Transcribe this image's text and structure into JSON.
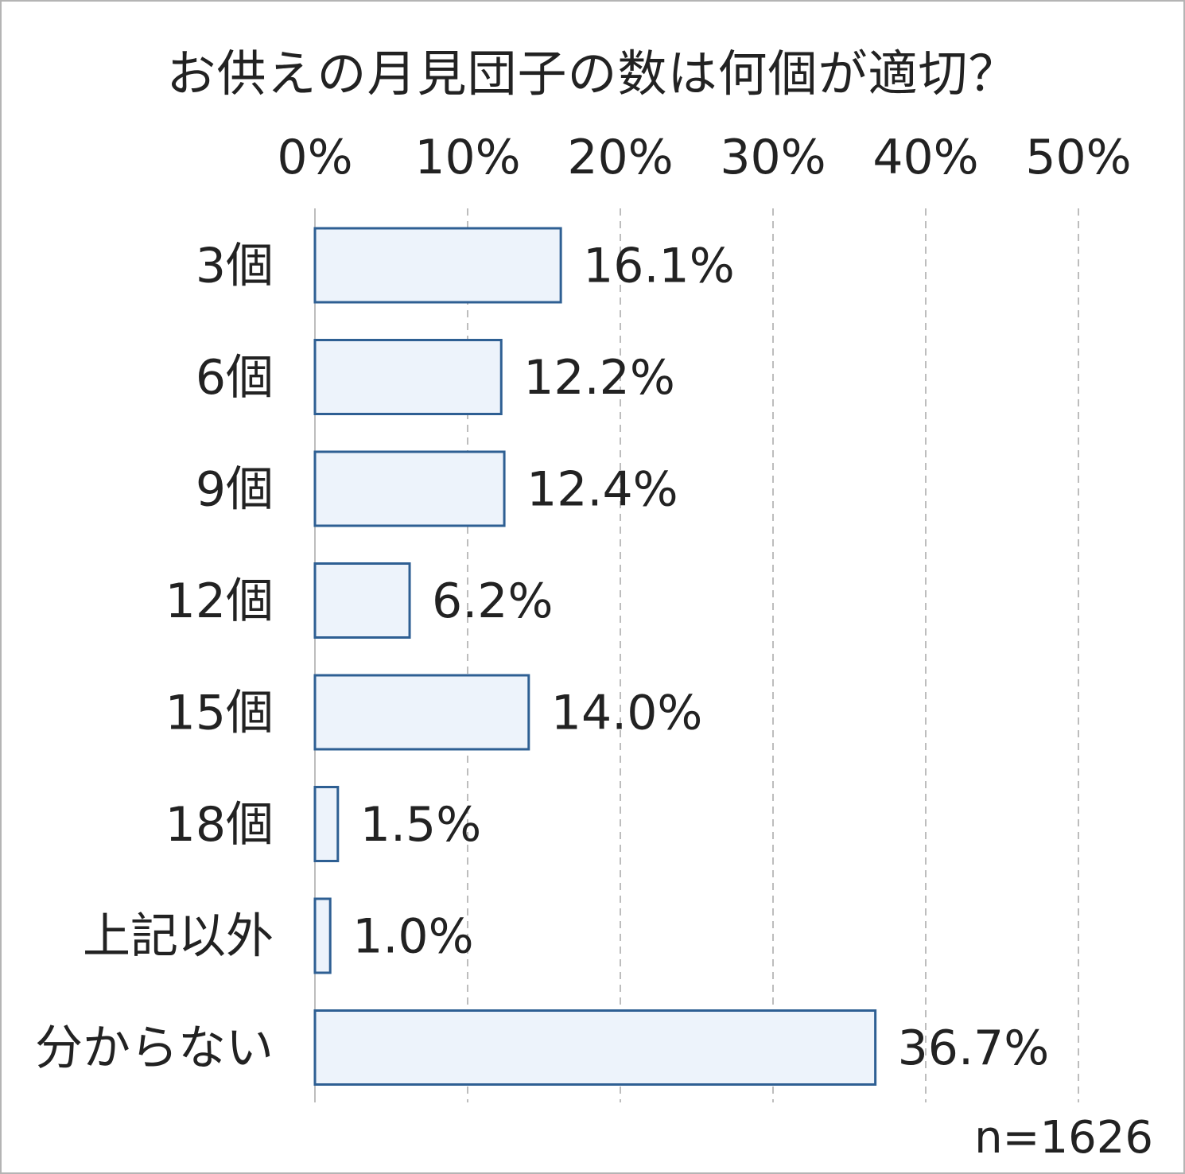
{
  "chart_data": {
    "type": "bar",
    "orientation": "horizontal",
    "title": "お供えの月見団子の数は何個が適切？",
    "categories": [
      "3個",
      "6個",
      "9個",
      "12個",
      "15個",
      "18個",
      "上記以外",
      "分からない"
    ],
    "values": [
      16.1,
      12.2,
      12.4,
      6.2,
      14.0,
      1.5,
      1.0,
      36.7
    ],
    "value_labels": [
      "16.1%",
      "12.2%",
      "12.4%",
      "6.2%",
      "14.0%",
      "1.5%",
      "1.0%",
      "36.7%"
    ],
    "x_ticks": [
      "0%",
      "10%",
      "20%",
      "30%",
      "40%",
      "50%"
    ],
    "xlim": [
      0,
      50
    ],
    "x_axis_position": "top",
    "grid": true,
    "grid_style": "dashed",
    "colors": {
      "bar_fill": "#edf3fb",
      "bar_stroke": "#2e5f93",
      "grid": "#bdbdbd"
    }
  },
  "note": "n=1626"
}
